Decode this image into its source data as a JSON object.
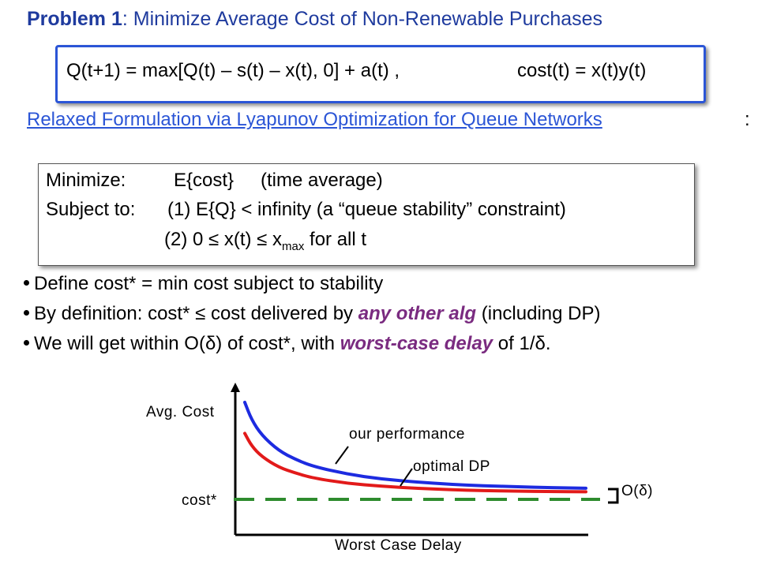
{
  "title": {
    "bold_part": "Problem 1",
    "rest": ": Minimize Average Cost of Non-Renewable Purchases"
  },
  "equations": {
    "queue_update": "Q(t+1) = max[Q(t) – s(t) – x(t), 0] + a(t)   ,",
    "cost": "cost(t) = x(t)y(t)"
  },
  "relaxed_heading": "Relaxed Formulation via Lyapunov Optimization for Queue Networks",
  "relaxed_colon": ":",
  "optimization": {
    "minimize_label": "Minimize:",
    "minimize_value": "E{cost}",
    "minimize_note": "(time average)",
    "subject_label": "Subject to:",
    "constraint1": "(1)   E{Q} < infinity   (a “queue stability” constraint)",
    "constraint2_prefix": "(2)   0 ≤ x(t) ≤ x",
    "constraint2_sub": "max",
    "constraint2_suffix": "  for all t"
  },
  "bullets": {
    "b1": "Define cost* = min cost subject to stability",
    "b2_pre": "By definition: cost* ≤ cost delivered by ",
    "b2_em": "any other alg",
    "b2_post": " (including DP)",
    "b3_pre": "We will get within O(δ) of cost*, with ",
    "b3_em": "worst-case delay",
    "b3_post": "  of 1/δ."
  },
  "chart_data": {
    "type": "line",
    "title": "",
    "xlabel": "Worst Case Delay",
    "ylabel": "Avg. Cost",
    "series": [
      {
        "name": "our performance",
        "color": "#1d2be0",
        "x": [
          0.0,
          0.02,
          0.05,
          0.1,
          0.15,
          0.2,
          0.3,
          0.4,
          0.5,
          0.6,
          0.7,
          0.8,
          0.9,
          1.0
        ],
        "y": [
          1.0,
          0.82,
          0.66,
          0.5,
          0.41,
          0.34,
          0.26,
          0.21,
          0.18,
          0.155,
          0.14,
          0.13,
          0.12,
          0.115
        ]
      },
      {
        "name": "optimal DP",
        "color": "#e21a1a",
        "x": [
          0.0,
          0.02,
          0.05,
          0.1,
          0.15,
          0.2,
          0.3,
          0.4,
          0.5,
          0.6,
          0.7,
          0.8,
          0.9,
          1.0
        ],
        "y": [
          0.68,
          0.55,
          0.44,
          0.33,
          0.27,
          0.22,
          0.165,
          0.135,
          0.115,
          0.1,
          0.09,
          0.085,
          0.08,
          0.078
        ]
      }
    ],
    "reference_line": {
      "label": "cost*",
      "color": "#2e8b2e",
      "y": 0.0
    },
    "gap_label": "O(δ)",
    "annotations": [
      "our performance",
      "optimal DP"
    ]
  },
  "colors": {
    "title": "#1f3b9e",
    "accent_blue": "#2b55d6",
    "emphasis_purple": "#7a2b80"
  }
}
